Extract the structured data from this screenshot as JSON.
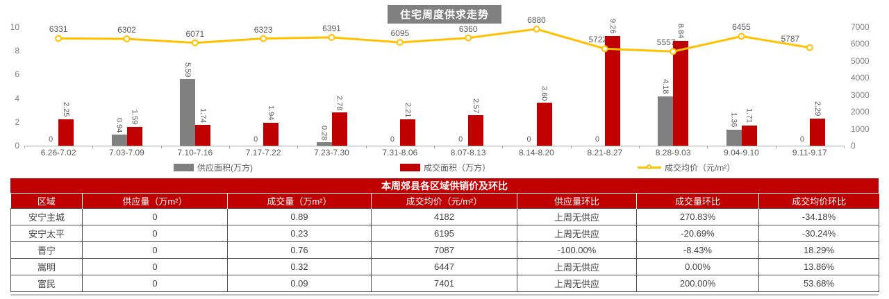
{
  "chart": {
    "title": "住宅周度供求走势",
    "left_axis_ticks": [
      "10",
      "8",
      "6",
      "4",
      "2",
      "0"
    ],
    "right_axis_ticks": [
      "7000",
      "6000",
      "5000",
      "4000",
      "3000",
      "2000",
      "1000",
      "0"
    ],
    "legend": [
      {
        "label": "供应面积(万方)",
        "color": "#808080",
        "kind": "bar"
      },
      {
        "label": "成交面积（万方）",
        "color": "#c00000",
        "kind": "bar"
      },
      {
        "label": "成交均价（元/m²）",
        "color": "#ffc000",
        "kind": "line"
      }
    ]
  },
  "chart_data": {
    "type": "bar",
    "subtype": "combo-bar-line",
    "title": "住宅周度供求走势",
    "categories": [
      "6.26-7.02",
      "7.03-7.09",
      "7.10-7.16",
      "7.17-7.22",
      "7.23-7.30",
      "7.31-8.06",
      "8.07-8.13",
      "8.14-8.20",
      "8.21-8.27",
      "8.28-9.03",
      "9.04-9.10",
      "9.11-9.17"
    ],
    "series": [
      {
        "name": "供应面积(万方)",
        "type": "bar",
        "axis": "left",
        "color": "#808080",
        "values": [
          0,
          0.94,
          5.59,
          0,
          0.28,
          0,
          0,
          0,
          0,
          4.18,
          1.36,
          0
        ],
        "labels": [
          "0",
          "0.94",
          "5.59",
          "0",
          "0.28",
          "0",
          "0",
          "0",
          "0",
          "4.18",
          "1.36",
          "0"
        ]
      },
      {
        "name": "成交面积（万方）",
        "type": "bar",
        "axis": "left",
        "color": "#c00000",
        "values": [
          2.25,
          1.59,
          1.74,
          1.94,
          2.78,
          2.21,
          2.57,
          3.6,
          9.26,
          8.84,
          1.71,
          2.29
        ],
        "labels": [
          "2.25",
          "1.59",
          "1.74",
          "1.94",
          "2.78",
          "2.21",
          "2.57",
          "3.60",
          "9.26",
          "8.84",
          "1.71",
          "2.29"
        ]
      },
      {
        "name": "成交均价（元/m²）",
        "type": "line",
        "axis": "right",
        "color": "#ffc000",
        "values": [
          6331,
          6302,
          6071,
          6323,
          6391,
          6095,
          6360,
          6880,
          5722,
          5557,
          6455,
          5787
        ],
        "labels": [
          "6331",
          "6302",
          "6071",
          "6323",
          "6391",
          "6095",
          "6360",
          "6880",
          "5722",
          "5557",
          "6455",
          "5787"
        ]
      }
    ],
    "left_ylim": [
      0,
      10
    ],
    "right_ylim": [
      0,
      7000
    ],
    "grid": false,
    "legend_position": "bottom"
  },
  "table": {
    "title": "本周郊县各区域供销价及环比",
    "headers": [
      "区域",
      "供应量（万m²）",
      "成交量（万m²）",
      "成交均价（元/m²）",
      "供应量环比",
      "成交量环比",
      "成交均价环比"
    ],
    "rows": [
      [
        "安宁主城",
        "0",
        "0.89",
        "4182",
        "上周无供应",
        "270.83%",
        "-34.18%"
      ],
      [
        "安宁太平",
        "0",
        "0.23",
        "6195",
        "上周无供应",
        "-20.69%",
        "-30.24%"
      ],
      [
        "晋宁",
        "0",
        "0.76",
        "7087",
        "-100.00%",
        "-8.43%",
        "18.29%"
      ],
      [
        "嵩明",
        "0",
        "0.32",
        "6447",
        "上周无供应",
        "0.00%",
        "13.86%"
      ],
      [
        "富民",
        "0",
        "0.09",
        "7401",
        "上周无供应",
        "200.00%",
        "53.68%"
      ]
    ]
  },
  "colors": {
    "supply_bar": "#808080",
    "deal_bar": "#c00000",
    "price_line": "#ffc000",
    "table_header_bg": "#c00000",
    "axis_text": "#808080",
    "label_text": "#595959"
  }
}
